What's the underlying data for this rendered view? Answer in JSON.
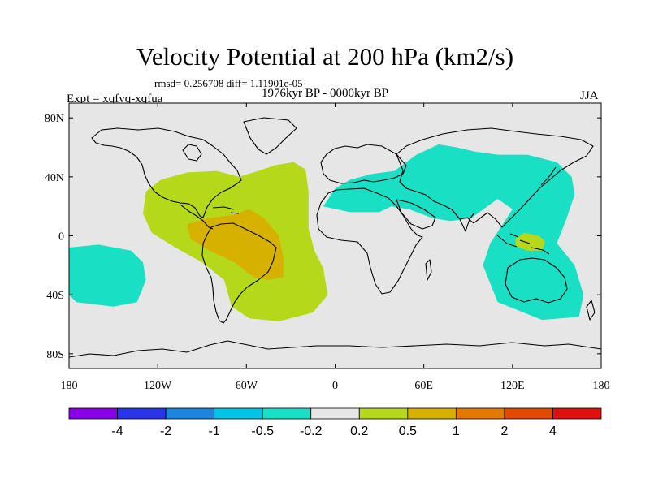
{
  "title": "Velocity Potential at 200 hPa (km2/s)",
  "stats_line": "rmsd= 0.256708 diff= 1.11901e-05",
  "period_line": "1976kyr BP - 0000kyr BP",
  "expt_line": "Expt = xqfvq-xqfua",
  "season": "JJA",
  "colors": {
    "background": "#e6e6e6",
    "land_outline": "#000000",
    "levels": [
      "#8a00e8",
      "#2a35e8",
      "#1a86e0",
      "#00c4e8",
      "#19e0c4",
      "#e6e6e6",
      "#b6d81a",
      "#d7b100",
      "#e47800",
      "#e34a00",
      "#e01010"
    ]
  },
  "chart_data": {
    "type": "filled-contour map",
    "variable": "200 hPa velocity potential anomaly",
    "units": "km2/s",
    "x_axis": {
      "range": [
        -180,
        180
      ],
      "tick_values": [
        -180,
        -120,
        -60,
        0,
        60,
        120,
        180
      ],
      "tick_labels": [
        "180",
        "120W",
        "60W",
        "0",
        "60E",
        "120E",
        "180"
      ]
    },
    "y_axis": {
      "range": [
        -90,
        90
      ],
      "tick_values": [
        80,
        40,
        0,
        -40,
        -80
      ],
      "tick_labels": [
        "80N",
        "40N",
        "0",
        "40S",
        "80S"
      ]
    },
    "colorbar": {
      "boundaries": [
        -4,
        -2,
        -1,
        -0.5,
        -0.2,
        0.2,
        0.5,
        1,
        2,
        4
      ],
      "labels": [
        "-4",
        "-2",
        "-1",
        "-0.5",
        "-0.2",
        "0.2",
        "0.5",
        "1",
        "2",
        "4"
      ]
    },
    "regions": [
      {
        "name": "americas-atlantic-positive",
        "level": "0.2 to 0.5",
        "color_index": 6,
        "outline": [
          [
            -128,
            30
          ],
          [
            -118,
            38
          ],
          [
            -100,
            43
          ],
          [
            -80,
            44
          ],
          [
            -65,
            40
          ],
          [
            -52,
            44
          ],
          [
            -40,
            48
          ],
          [
            -28,
            50
          ],
          [
            -20,
            45
          ],
          [
            -18,
            30
          ],
          [
            -18,
            5
          ],
          [
            -14,
            -10
          ],
          [
            -8,
            -22
          ],
          [
            -5,
            -40
          ],
          [
            -15,
            -52
          ],
          [
            -38,
            -58
          ],
          [
            -58,
            -56
          ],
          [
            -70,
            -48
          ],
          [
            -75,
            -30
          ],
          [
            -90,
            -18
          ],
          [
            -108,
            -8
          ],
          [
            -124,
            2
          ],
          [
            -130,
            15
          ]
        ]
      },
      {
        "name": "south-america-core",
        "level": "0.5 to 1",
        "color_index": 7,
        "outline": [
          [
            -100,
            8
          ],
          [
            -86,
            12
          ],
          [
            -70,
            14
          ],
          [
            -58,
            18
          ],
          [
            -48,
            12
          ],
          [
            -38,
            0
          ],
          [
            -35,
            -15
          ],
          [
            -35,
            -28
          ],
          [
            -45,
            -30
          ],
          [
            -55,
            -28
          ],
          [
            -68,
            -18
          ],
          [
            -85,
            -10
          ],
          [
            -98,
            -2
          ]
        ]
      },
      {
        "name": "north-africa-asia-negative",
        "level": "-0.5 to -0.2",
        "color_index": 4,
        "outline": [
          [
            -8,
            20
          ],
          [
            0,
            32
          ],
          [
            10,
            38
          ],
          [
            25,
            42
          ],
          [
            40,
            44
          ],
          [
            55,
            55
          ],
          [
            70,
            62
          ],
          [
            82,
            60
          ],
          [
            95,
            57
          ],
          [
            110,
            55
          ],
          [
            130,
            55
          ],
          [
            150,
            50
          ],
          [
            160,
            40
          ],
          [
            162,
            28
          ],
          [
            156,
            10
          ],
          [
            150,
            -5
          ],
          [
            162,
            -20
          ],
          [
            168,
            -40
          ],
          [
            165,
            -55
          ],
          [
            140,
            -57
          ],
          [
            110,
            -45
          ],
          [
            100,
            -20
          ],
          [
            105,
            -5
          ],
          [
            120,
            18
          ],
          [
            110,
            25
          ],
          [
            92,
            12
          ],
          [
            78,
            10
          ],
          [
            66,
            12
          ],
          [
            50,
            18
          ],
          [
            38,
            20
          ],
          [
            30,
            16
          ],
          [
            10,
            16
          ]
        ]
      },
      {
        "name": "indonesia-positive",
        "level": "0.2 to 0.5",
        "color_index": 6,
        "outline": [
          [
            122,
            -2
          ],
          [
            128,
            2
          ],
          [
            138,
            0
          ],
          [
            142,
            -4
          ],
          [
            140,
            -10
          ],
          [
            130,
            -10
          ],
          [
            122,
            -7
          ]
        ]
      },
      {
        "name": "central-pacific-negative",
        "level": "-0.5 to -0.2",
        "color_index": 4,
        "outline": [
          [
            -180,
            -8
          ],
          [
            -160,
            -6
          ],
          [
            -138,
            -10
          ],
          [
            -130,
            -18
          ],
          [
            -128,
            -30
          ],
          [
            -134,
            -45
          ],
          [
            -150,
            -48
          ],
          [
            -175,
            -45
          ],
          [
            -180,
            -40
          ]
        ]
      }
    ]
  }
}
